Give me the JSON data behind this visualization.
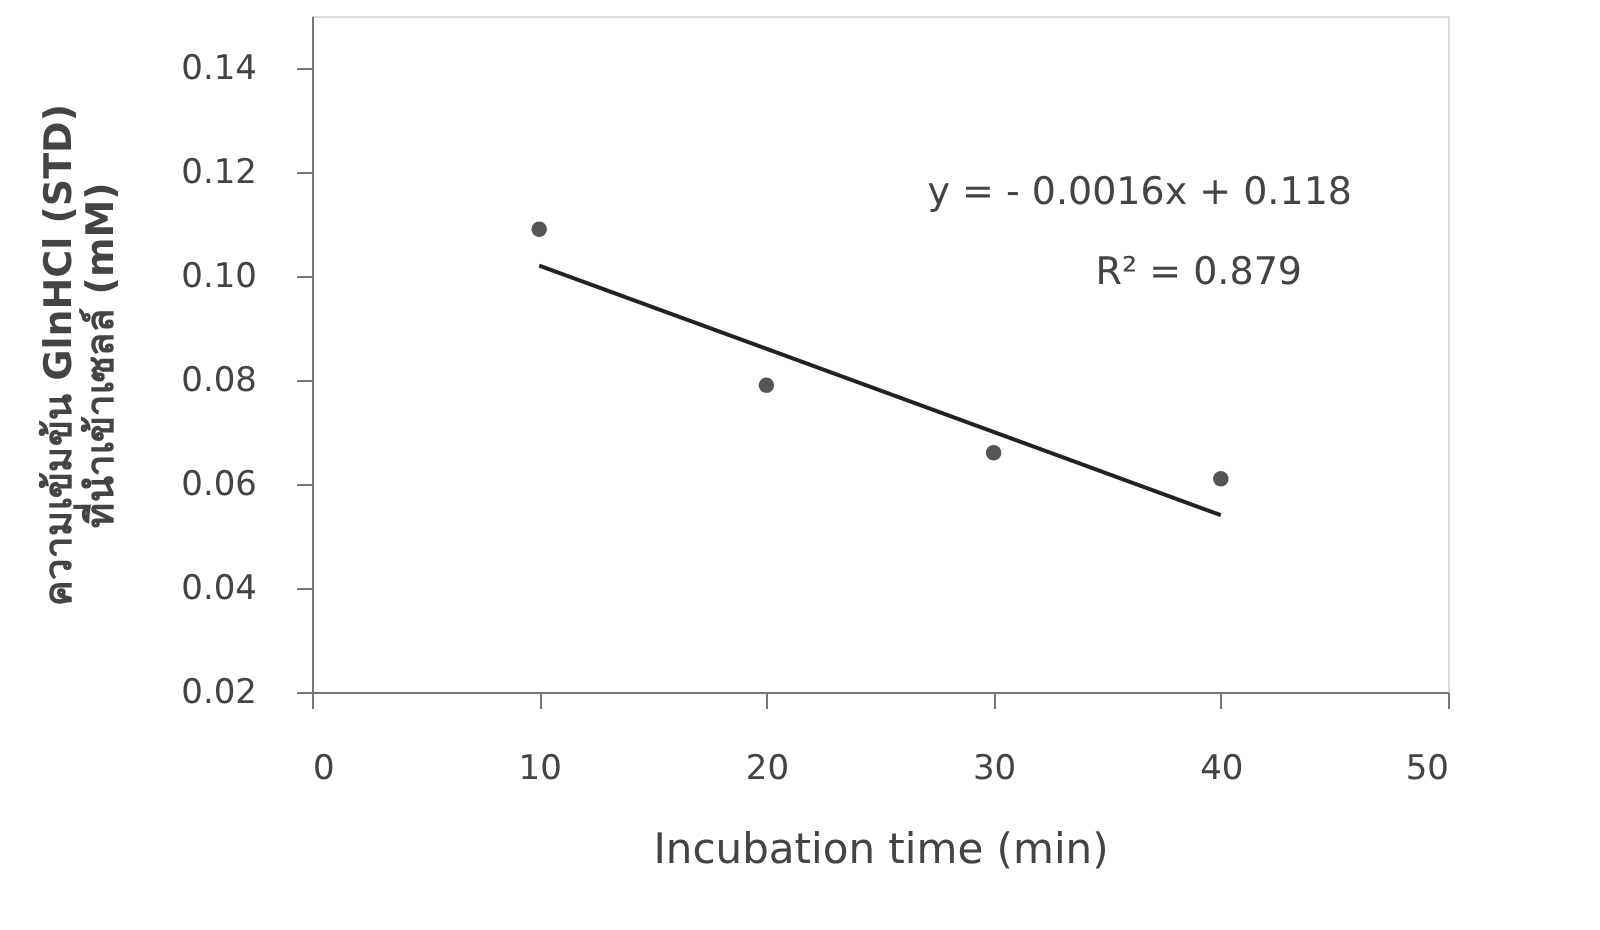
{
  "chart_data": {
    "type": "scatter",
    "xlabel": "Incubation time (min)",
    "ylabel": "ความเข้มข้น GlnHCl (STD)\nที่นำเข้าเซลล์ (mM)",
    "x": [
      10,
      20,
      30,
      40
    ],
    "series": [
      {
        "color": "#555555",
        "marker": "circle",
        "values": [
          0.109,
          0.079,
          0.066,
          0.061
        ]
      },
      {
        "type": "line",
        "color": "#222222",
        "line_style": "solid",
        "x": [
          10,
          40
        ],
        "values": [
          0.102,
          0.054
        ]
      }
    ],
    "xlim": [
      0,
      50
    ],
    "xticks": [
      0,
      10,
      20,
      30,
      40,
      50
    ],
    "ylim": [
      0.02,
      0.15
    ],
    "yticks": [
      {
        "value": 0.02,
        "label": "0.02"
      },
      {
        "value": 0.04,
        "label": "0.04"
      },
      {
        "value": 0.06,
        "label": "0.06"
      },
      {
        "value": 0.08,
        "label": "0.08"
      },
      {
        "value": 0.1,
        "label": "0.10"
      },
      {
        "value": 0.12,
        "label": "0.12"
      },
      {
        "value": 0.14,
        "label": "0.14"
      }
    ],
    "annotations": [
      "y = - 0.0016x + 0.118",
      "R² = 0.879"
    ],
    "grid": false
  }
}
